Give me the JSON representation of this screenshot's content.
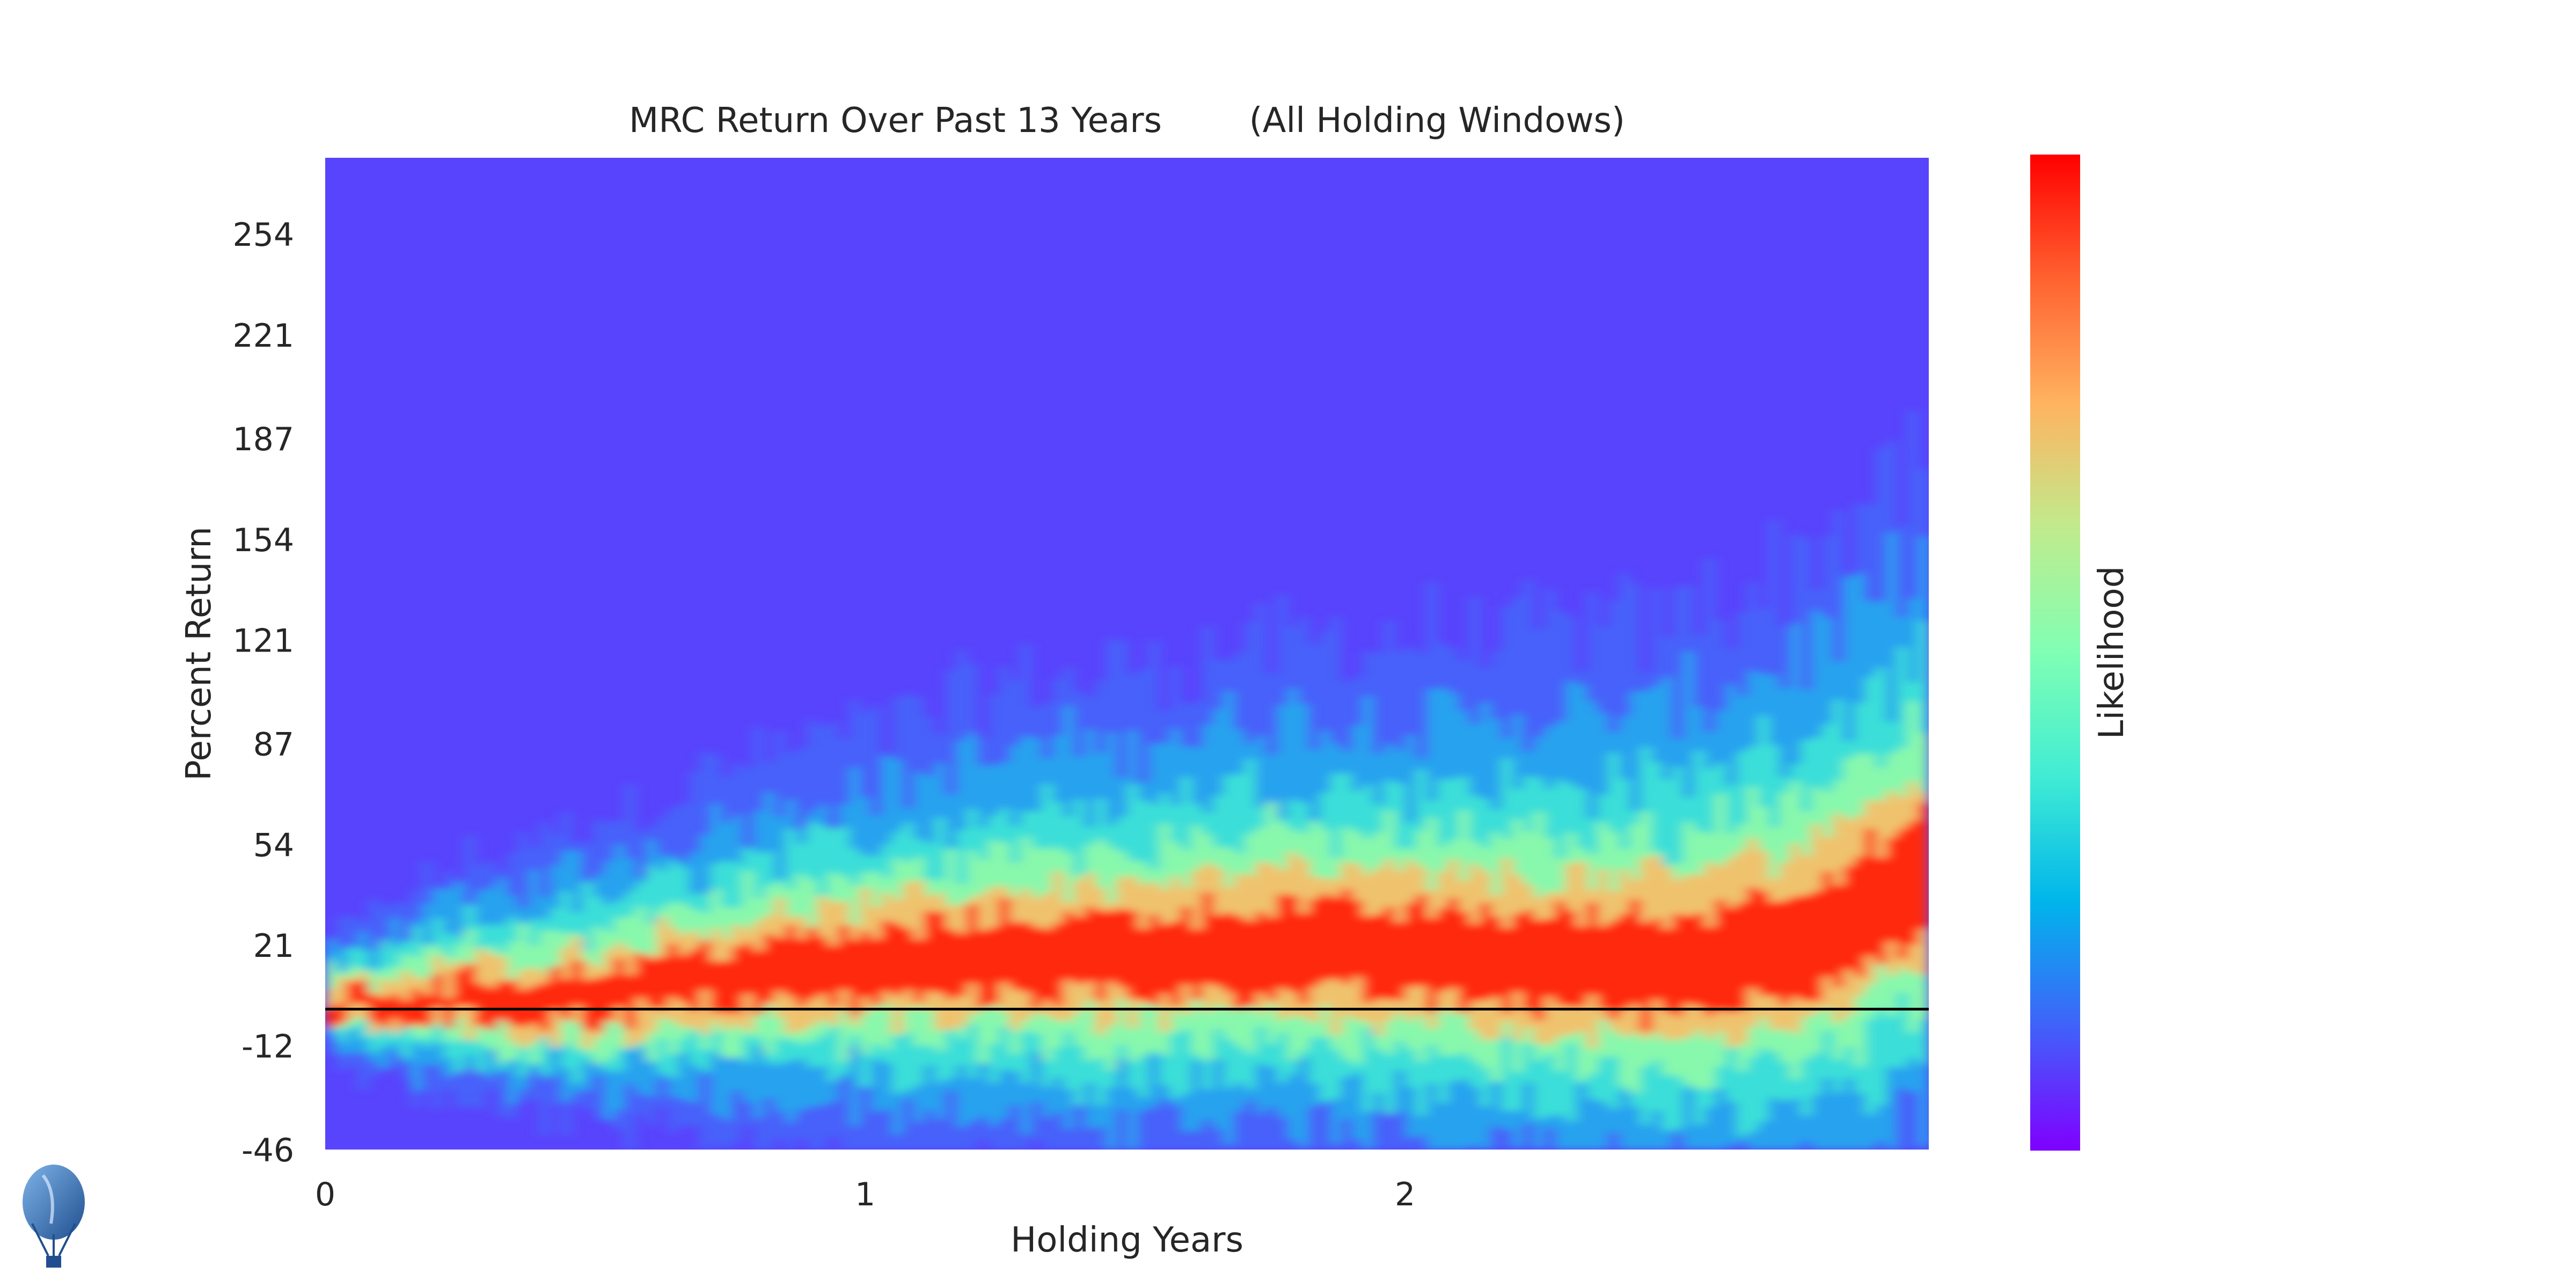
{
  "chart_data": {
    "type": "heatmap",
    "title": "MRC Return Over Past 13 Years        (All Holding Windows)",
    "xlabel": "Holding Years",
    "ylabel": "Percent Return",
    "colorbar_label": "Likelihood",
    "colormap": "rainbow",
    "x_ticks": [
      0,
      1,
      2
    ],
    "x_tick_labels": [
      "0",
      "1",
      "2"
    ],
    "xlim": [
      0,
      2.97
    ],
    "y_ticks": [
      -46,
      -12,
      21,
      54,
      87,
      121,
      154,
      187,
      221,
      254
    ],
    "y_tick_labels": [
      "-46",
      "-12",
      "21",
      "54",
      "87",
      "121",
      "154",
      "187",
      "221",
      "254"
    ],
    "ylim": [
      -46,
      279
    ],
    "reference_line_y": 0,
    "grid": false,
    "density_ridge": {
      "holding_years": [
        0.0,
        0.25,
        0.5,
        0.75,
        1.0,
        1.25,
        1.5,
        1.75,
        2.0,
        2.25,
        2.5,
        2.75,
        2.97
      ],
      "median_return": [
        0,
        2,
        4,
        10,
        12,
        16,
        16,
        18,
        16,
        14,
        12,
        22,
        40
      ],
      "spread": [
        7,
        14,
        18,
        22,
        25,
        28,
        30,
        32,
        33,
        34,
        36,
        40,
        44
      ]
    }
  },
  "logo": {
    "name": "hot-air-balloon-logo"
  },
  "colors": {
    "background": "#5944fd",
    "low": "#7f00ff",
    "mid": "#80ffb4",
    "high": "#ff0000",
    "zero_line": "#000000"
  }
}
